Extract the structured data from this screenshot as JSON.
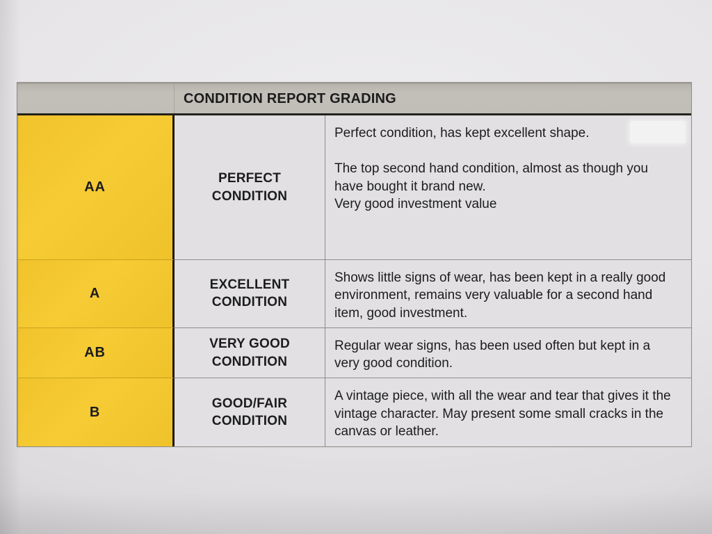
{
  "document": {
    "header": {
      "title": "CONDITION REPORT GRADING"
    },
    "rows": [
      {
        "grade": "AA",
        "condition": "PERFECT\nCONDITION",
        "paragraphs": [
          "Perfect condition, has kept excellent shape.",
          "The top second hand condition, almost as though you have bought it brand new.",
          "Very good investment value"
        ]
      },
      {
        "grade": "A",
        "condition": "EXCELLENT\nCONDITION",
        "paragraphs": [
          "Shows little signs of wear, has been kept in a really good environment, remains very valuable for a second hand item, good investment."
        ]
      },
      {
        "grade": "AB",
        "condition": "VERY GOOD\nCONDITION",
        "paragraphs": [
          "Regular wear signs, has been used often but kept in a very good condition."
        ]
      },
      {
        "grade": "B",
        "condition": "GOOD/FAIR\nCONDITION",
        "paragraphs": [
          "A vintage piece, with all the wear and tear that gives it the vintage character. May present some small cracks in the canvas or leather."
        ]
      }
    ],
    "colors": {
      "grade_column_yellow": "#f3c72f",
      "header_bar_gray": "#c0bdb6",
      "paper": "#e7e5e7",
      "text": "#1c1c1e"
    }
  }
}
